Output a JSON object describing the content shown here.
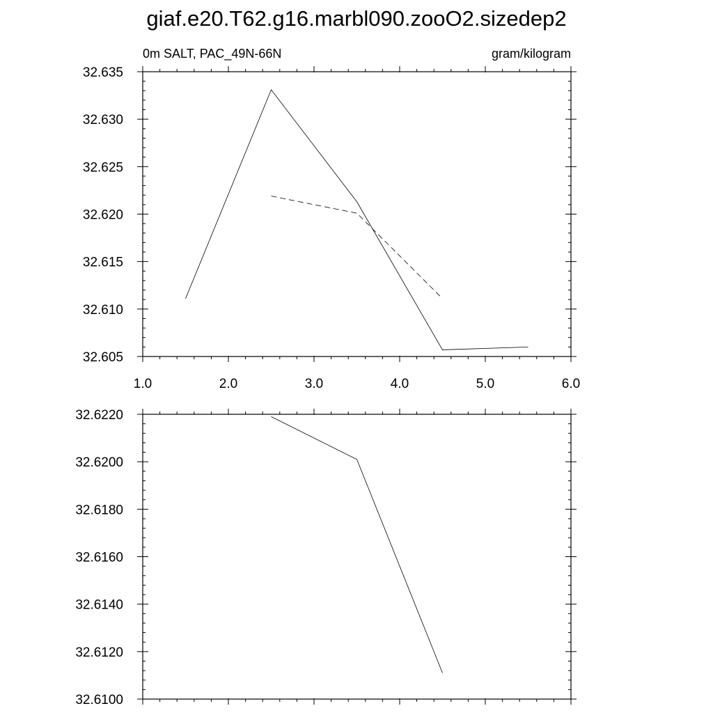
{
  "title": "giaf.e20.T62.g16.marbl090.zooO2.sizedep2",
  "chart_data": [
    {
      "type": "line",
      "left_label": "0m SALT, PAC_49N-66N",
      "right_label": "gram/kilogram",
      "xlim": [
        1.0,
        6.0
      ],
      "ylim": [
        32.605,
        32.635
      ],
      "x_ticks": [
        1.0,
        2.0,
        3.0,
        4.0,
        5.0,
        6.0
      ],
      "x_tick_labels": [
        "1.0",
        "2.0",
        "3.0",
        "4.0",
        "5.0",
        "6.0"
      ],
      "x_minor_step": 0.2,
      "y_ticks": [
        32.605,
        32.61,
        32.615,
        32.62,
        32.625,
        32.63,
        32.635
      ],
      "y_tick_labels": [
        "32.605",
        "32.610",
        "32.615",
        "32.620",
        "32.625",
        "32.630",
        "32.635"
      ],
      "y_minor_step": 0.001,
      "grid": false,
      "series": [
        {
          "style": "solid",
          "x": [
            1.5,
            2.5,
            3.5,
            4.5,
            5.5
          ],
          "y": [
            32.6111,
            32.6331,
            32.6213,
            32.6057,
            32.606
          ]
        },
        {
          "style": "dashed",
          "x": [
            2.5,
            3.5,
            4.5
          ],
          "y": [
            32.6219,
            32.6201,
            32.6111
          ]
        }
      ]
    },
    {
      "type": "line",
      "xlim": [
        1.0,
        6.0
      ],
      "ylim": [
        32.61,
        32.622
      ],
      "x_ticks": [
        1.0,
        2.0,
        3.0,
        4.0,
        5.0,
        6.0
      ],
      "x_tick_labels": [],
      "x_minor_step": 0.2,
      "y_ticks": [
        32.61,
        32.612,
        32.614,
        32.616,
        32.618,
        32.62,
        32.622
      ],
      "y_tick_labels": [
        "32.6100",
        "32.6120",
        "32.6140",
        "32.6160",
        "32.6180",
        "32.6200",
        "32.6220"
      ],
      "y_minor_step": 0.0004,
      "grid": false,
      "series": [
        {
          "style": "solid",
          "x": [
            2.5,
            3.5,
            4.5
          ],
          "y": [
            32.6219,
            32.6201,
            32.6111
          ]
        }
      ]
    }
  ]
}
